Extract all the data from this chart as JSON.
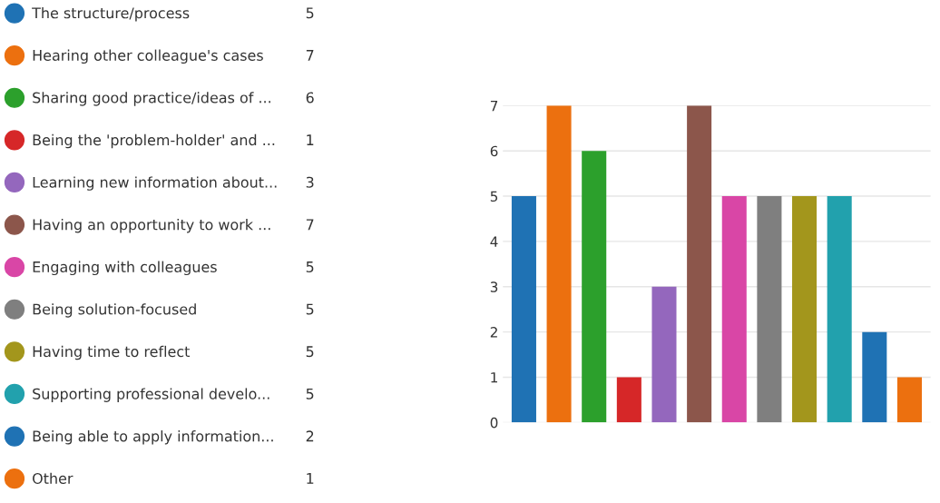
{
  "chart_data": {
    "type": "bar",
    "categories": [
      null,
      null,
      null,
      null,
      null,
      null,
      null,
      null,
      null,
      null,
      null,
      null
    ],
    "series": [
      {
        "name": "The structure/process",
        "color": "#1f72b4",
        "values": [
          5,
          null,
          null,
          null,
          null,
          null,
          null,
          null,
          null,
          null,
          null,
          null
        ]
      },
      {
        "name": "Hearing other colleague's cases",
        "color": "#ec700f",
        "values": [
          null,
          7,
          null,
          null,
          null,
          null,
          null,
          null,
          null,
          null,
          null,
          null
        ]
      },
      {
        "name": "Sharing good practice/ideas of ...",
        "color": "#2ca02c",
        "values": [
          null,
          null,
          6,
          null,
          null,
          null,
          null,
          null,
          null,
          null,
          null,
          null
        ]
      },
      {
        "name": "Being the 'problem-holder' and ...",
        "color": "#d62728",
        "values": [
          null,
          null,
          null,
          1,
          null,
          null,
          null,
          null,
          null,
          null,
          null,
          null
        ]
      },
      {
        "name": "Learning new information about...",
        "color": "#9467bd",
        "values": [
          null,
          null,
          null,
          null,
          3,
          null,
          null,
          null,
          null,
          null,
          null,
          null
        ]
      },
      {
        "name": "Having an opportunity to work ...",
        "color": "#8c564b",
        "values": [
          null,
          null,
          null,
          null,
          null,
          7,
          null,
          null,
          null,
          null,
          null,
          null
        ]
      },
      {
        "name": "Engaging with colleagues",
        "color": "#d946a6",
        "values": [
          null,
          null,
          null,
          null,
          null,
          null,
          5,
          null,
          null,
          null,
          null,
          null
        ]
      },
      {
        "name": "Being solution-focused",
        "color": "#7f7f7f",
        "values": [
          null,
          null,
          null,
          null,
          null,
          null,
          null,
          5,
          null,
          null,
          null,
          null
        ]
      },
      {
        "name": "Having time to reflect",
        "color": "#a3961c",
        "values": [
          null,
          null,
          null,
          null,
          null,
          null,
          null,
          null,
          5,
          null,
          null,
          null
        ]
      },
      {
        "name": "Supporting professional develo...",
        "color": "#22a1ad",
        "values": [
          null,
          null,
          null,
          null,
          null,
          null,
          null,
          null,
          null,
          5,
          null,
          null
        ]
      },
      {
        "name": "Being able to apply information...",
        "color": "#1f72b4",
        "values": [
          null,
          null,
          null,
          null,
          null,
          null,
          null,
          null,
          null,
          null,
          2,
          null
        ]
      },
      {
        "name": "Other",
        "color": "#ec700f",
        "values": [
          null,
          null,
          null,
          null,
          null,
          null,
          null,
          null,
          null,
          null,
          null,
          1
        ]
      }
    ],
    "annotations": [
      "5",
      "7",
      "6",
      "1",
      "3",
      "7",
      "5",
      "5",
      "5",
      "5",
      "2",
      "1"
    ],
    "ylim": [
      0,
      7
    ],
    "yticks": [
      0,
      1,
      2,
      3,
      4,
      5,
      6,
      7
    ],
    "grid": "y",
    "legend": "left",
    "tick_labels": "y"
  }
}
